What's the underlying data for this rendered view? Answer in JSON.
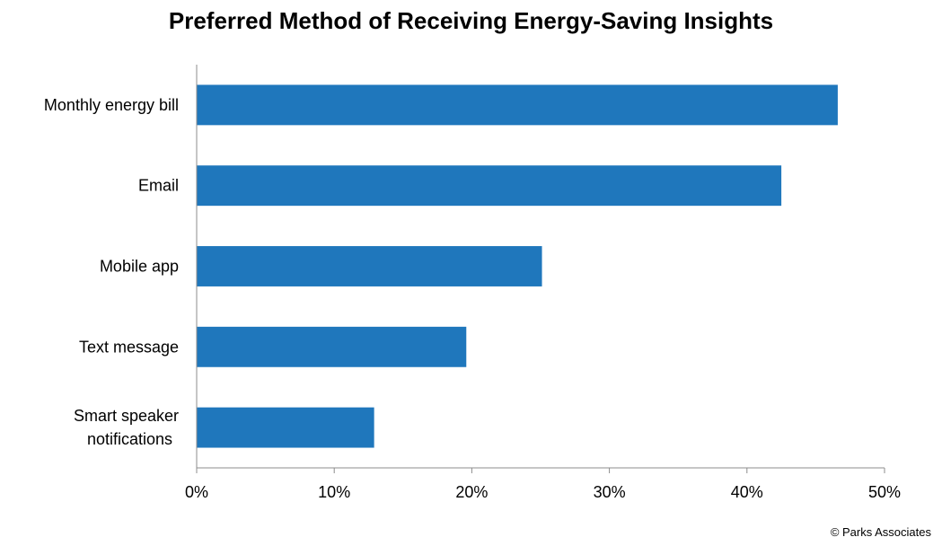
{
  "chart_data": {
    "type": "bar",
    "orientation": "horizontal",
    "title": "Preferred Method of Receiving Energy-Saving Insights",
    "categories": [
      "Monthly energy bill",
      "Email",
      "Mobile app",
      "Text message",
      "Smart speaker notifications"
    ],
    "category_lines": [
      [
        "Monthly energy bill"
      ],
      [
        "Email"
      ],
      [
        "Mobile app"
      ],
      [
        "Text message"
      ],
      [
        "Smart speaker",
        "notifications"
      ]
    ],
    "values": [
      46.6,
      42.5,
      25.1,
      19.6,
      12.9
    ],
    "xlim": [
      0,
      50
    ],
    "x_ticks": [
      0,
      10,
      20,
      30,
      40,
      50
    ],
    "x_tick_labels": [
      "0%",
      "10%",
      "20%",
      "30%",
      "40%",
      "50%"
    ],
    "bar_color": "#1f77bc",
    "grid": false,
    "legend": "none"
  },
  "footer": {
    "credit": "© Parks Associates"
  }
}
